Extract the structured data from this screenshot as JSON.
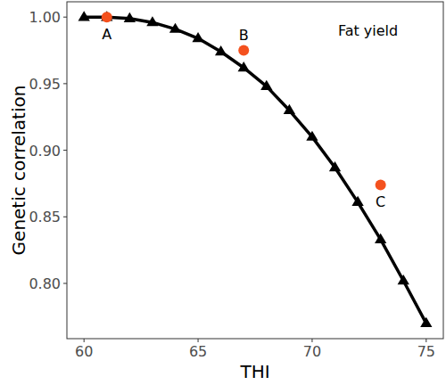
{
  "chart_data": {
    "type": "line",
    "x_label": "THI",
    "y_label": "Genetic correlation",
    "annotation": "Fat yield",
    "xlim": [
      59.25,
      75.75
    ],
    "ylim": [
      0.7585,
      1.0115
    ],
    "xticks": [
      60,
      65,
      70,
      75
    ],
    "yticks": [
      {
        "value": 0.8,
        "label": "0.80"
      },
      {
        "value": 0.85,
        "label": "0.85"
      },
      {
        "value": 0.9,
        "label": "0.90"
      },
      {
        "value": 0.95,
        "label": "0.95"
      },
      {
        "value": 1.0,
        "label": "1.00"
      }
    ],
    "grid": false,
    "series": [
      {
        "type": "line",
        "color": "#000000",
        "marker": "triangle",
        "x": [
          60,
          61,
          62,
          63,
          64,
          65,
          66,
          67,
          68,
          69,
          70,
          71,
          72,
          73,
          74,
          75
        ],
        "values": [
          1.0,
          1.0,
          0.999,
          0.996,
          0.991,
          0.984,
          0.974,
          0.962,
          0.948,
          0.93,
          0.91,
          0.887,
          0.861,
          0.833,
          0.802,
          0.77
        ]
      },
      {
        "type": "scatter",
        "color": "#f4511e",
        "marker": "circle",
        "x": [
          61,
          67,
          73
        ],
        "values": [
          1.0,
          0.975,
          0.874
        ],
        "point_labels": [
          "A",
          "B",
          "C"
        ]
      }
    ]
  }
}
